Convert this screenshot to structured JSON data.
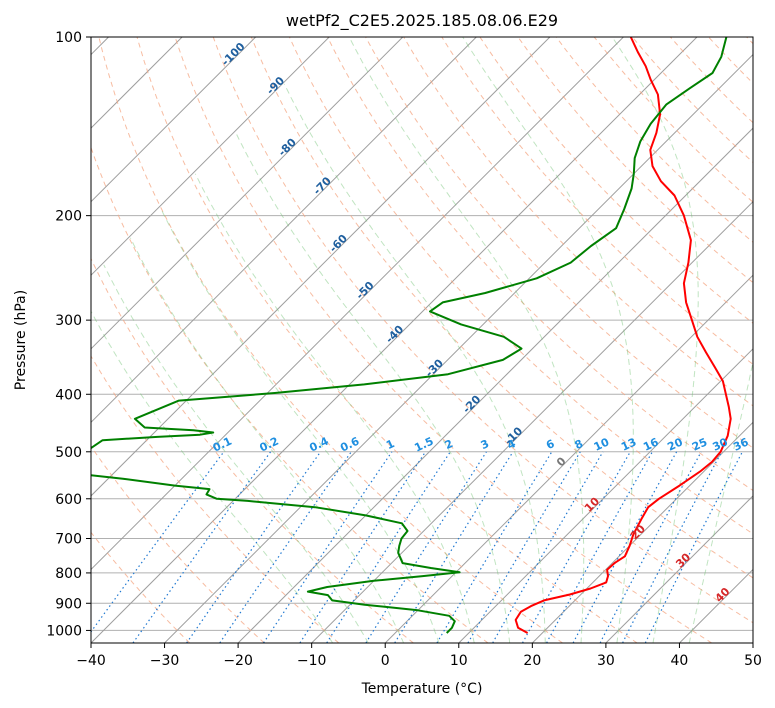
{
  "chart_data": {
    "type": "line",
    "title": "wetPf2_C2E5.2025.185.08.06.E29",
    "xlabel": "Temperature (°C)",
    "ylabel": "Pressure (hPa)",
    "xlim": [
      -40,
      50
    ],
    "ylim": [
      1050,
      100
    ],
    "y_scale": "log",
    "grid": true,
    "skew": "skew-T log-p",
    "x_ticks": [
      -40,
      -30,
      -20,
      -10,
      0,
      10,
      20,
      30,
      40,
      50
    ],
    "y_ticks": [
      100,
      200,
      300,
      400,
      500,
      600,
      700,
      800,
      900,
      1000
    ],
    "series": [
      {
        "color": "#ff0000",
        "points": [
          [
            1010,
            18.0
          ],
          [
            990,
            16.0
          ],
          [
            960,
            14.6
          ],
          [
            930,
            14.2
          ],
          [
            910,
            14.8
          ],
          [
            890,
            15.8
          ],
          [
            870,
            18.5
          ],
          [
            850,
            20.5
          ],
          [
            830,
            21.8
          ],
          [
            810,
            21.2
          ],
          [
            790,
            20.2
          ],
          [
            770,
            20.3
          ],
          [
            750,
            20.8
          ],
          [
            720,
            20.0
          ],
          [
            690,
            19.0
          ],
          [
            650,
            18.0
          ],
          [
            620,
            17.3
          ],
          [
            600,
            17.6
          ],
          [
            570,
            18.6
          ],
          [
            540,
            19.5
          ],
          [
            520,
            19.8
          ],
          [
            500,
            19.6
          ],
          [
            470,
            18.4
          ],
          [
            440,
            16.5
          ],
          [
            420,
            14.6
          ],
          [
            400,
            12.5
          ],
          [
            380,
            10.3
          ],
          [
            360,
            7.3
          ],
          [
            340,
            4.1
          ],
          [
            320,
            0.8
          ],
          [
            300,
            -2.2
          ],
          [
            280,
            -5.4
          ],
          [
            260,
            -8.3
          ],
          [
            240,
            -10.5
          ],
          [
            220,
            -13.2
          ],
          [
            200,
            -17.5
          ],
          [
            185,
            -21.5
          ],
          [
            175,
            -25.3
          ],
          [
            165,
            -28.5
          ],
          [
            155,
            -31.0
          ],
          [
            145,
            -32.5
          ],
          [
            135,
            -34.5
          ],
          [
            125,
            -37.5
          ],
          [
            118,
            -40.5
          ],
          [
            112,
            -43.0
          ],
          [
            106,
            -46.0
          ],
          [
            100,
            -49.0
          ]
        ]
      },
      {
        "color": "#008000",
        "points": [
          [
            1010,
            7.0
          ],
          [
            990,
            7.0
          ],
          [
            965,
            6.5
          ],
          [
            945,
            5.0
          ],
          [
            925,
            0.0
          ],
          [
            905,
            -8.0
          ],
          [
            890,
            -13.0
          ],
          [
            872,
            -14.3
          ],
          [
            860,
            -17.5
          ],
          [
            845,
            -15.5
          ],
          [
            825,
            -10.0
          ],
          [
            810,
            -4.0
          ],
          [
            798,
            0.5
          ],
          [
            785,
            -4.0
          ],
          [
            770,
            -8.5
          ],
          [
            740,
            -10.5
          ],
          [
            720,
            -11.3
          ],
          [
            700,
            -12.0
          ],
          [
            680,
            -12.2
          ],
          [
            660,
            -14.0
          ],
          [
            640,
            -20.0
          ],
          [
            620,
            -28.0
          ],
          [
            605,
            -38.0
          ],
          [
            600,
            -42.5
          ],
          [
            590,
            -44.5
          ],
          [
            578,
            -44.8
          ],
          [
            570,
            -50.0
          ],
          [
            555,
            -58.0
          ],
          [
            540,
            -68.0
          ],
          [
            478,
            -66.0
          ],
          [
            472,
            -59.0
          ],
          [
            468,
            -53.5
          ],
          [
            464,
            -52.0
          ],
          [
            460,
            -55.0
          ],
          [
            455,
            -62.0
          ],
          [
            440,
            -64.5
          ],
          [
            410,
            -61.0
          ],
          [
            398,
            -49.0
          ],
          [
            385,
            -38.0
          ],
          [
            370,
            -28.0
          ],
          [
            350,
            -22.5
          ],
          [
            335,
            -21.5
          ],
          [
            320,
            -25.5
          ],
          [
            305,
            -33.0
          ],
          [
            290,
            -39.0
          ],
          [
            280,
            -38.5
          ],
          [
            270,
            -34.0
          ],
          [
            255,
            -29.0
          ],
          [
            240,
            -26.5
          ],
          [
            225,
            -26.0
          ],
          [
            210,
            -25.0
          ],
          [
            195,
            -26.5
          ],
          [
            180,
            -28.3
          ],
          [
            170,
            -30.0
          ],
          [
            160,
            -32.0
          ],
          [
            150,
            -33.5
          ],
          [
            140,
            -34.5
          ],
          [
            130,
            -35.0
          ],
          [
            122,
            -34.0
          ],
          [
            115,
            -33.0
          ],
          [
            108,
            -34.0
          ],
          [
            100,
            -36.0
          ]
        ]
      }
    ],
    "dry_adiabat_labels": [
      "-100",
      "-90",
      "-80",
      "-70",
      "-60",
      "-50",
      "-40",
      "-30",
      "-20",
      "-10",
      "0",
      "10",
      "20",
      "30",
      "40"
    ],
    "mixing_ratio_labels": [
      "0.1",
      "0.2",
      "0.4",
      "0.6",
      "1",
      "1.5",
      "2",
      "3",
      "4",
      "6",
      "8",
      "10",
      "13",
      "16",
      "20",
      "25",
      "30",
      "36"
    ]
  }
}
